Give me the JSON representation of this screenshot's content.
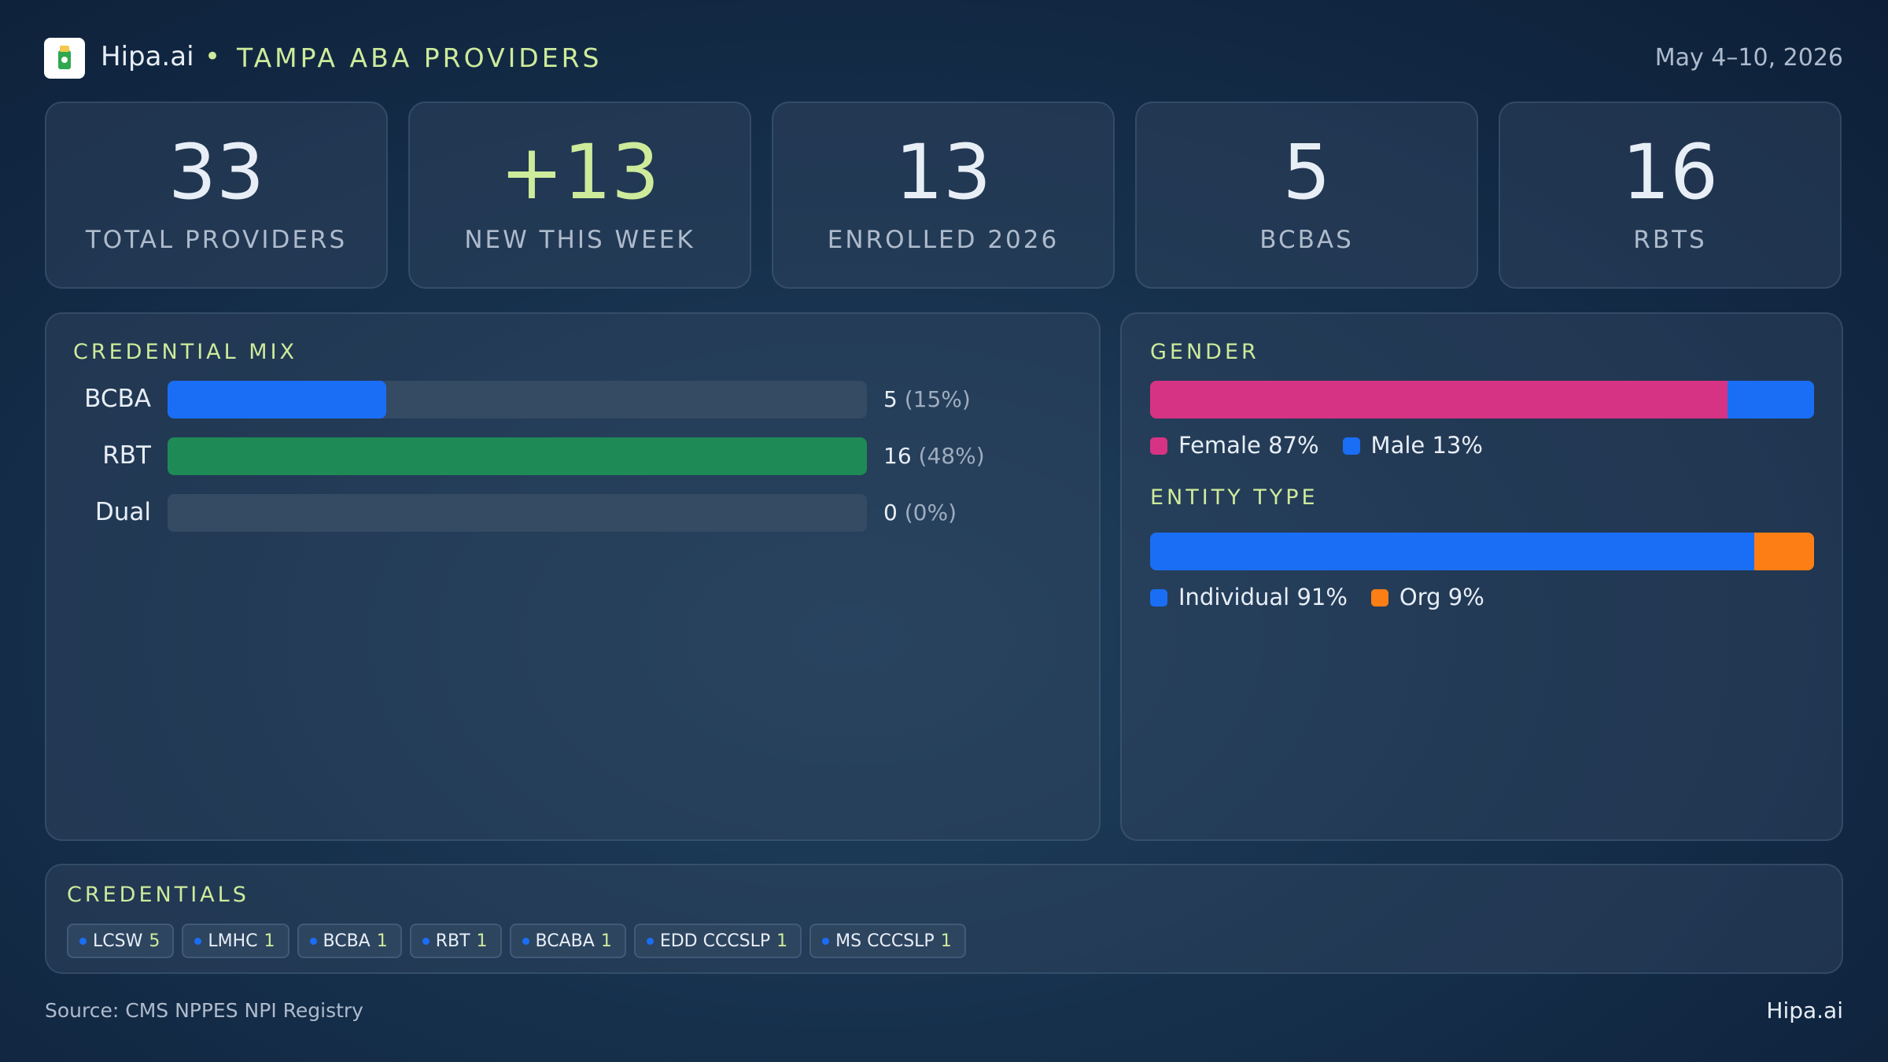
{
  "header": {
    "brand": "Hipa.ai",
    "separator": "•",
    "title": "TAMPA ABA PROVIDERS",
    "date": "May 4–10, 2026"
  },
  "kpis": [
    {
      "value": 33,
      "label": "TOTAL PROVIDERS"
    },
    {
      "value": "+13",
      "label": "NEW THIS WEEK",
      "color": "#cdeb9b"
    },
    {
      "value": 13,
      "label": "ENROLLED 2026"
    },
    {
      "value": 5,
      "label": "BCBAS"
    },
    {
      "value": 16,
      "label": "RBTS"
    }
  ],
  "credential_mix": {
    "title": "CREDENTIAL MIX",
    "categories": [
      "BCBA",
      "RBT",
      "Dual"
    ],
    "values": [
      5,
      16,
      0
    ],
    "percent_labels": [
      "(15%)",
      "(48%)",
      "(0%)"
    ],
    "colors": [
      "#1a6ef5",
      "#1e8a55",
      "#1a6ef5"
    ]
  },
  "gender": {
    "title": "GENDER",
    "series": [
      {
        "name": "Female",
        "value": 87,
        "label": "87%",
        "color": "#d63384"
      },
      {
        "name": "Male",
        "value": 13,
        "label": "13%",
        "color": "#1a6ef5"
      }
    ]
  },
  "entity_type": {
    "title": "ENTITY TYPE",
    "series": [
      {
        "name": "Individual",
        "value": 91,
        "label": "91%",
        "color": "#1a6ef5"
      },
      {
        "name": "Org",
        "value": 9,
        "label": "9%",
        "color": "#fd7e14"
      }
    ]
  },
  "credentials": {
    "title": "CREDENTIALS",
    "chips": [
      {
        "name": "LCSW",
        "count": 5
      },
      {
        "name": "LMHC",
        "count": 1
      },
      {
        "name": "BCBA",
        "count": 1
      },
      {
        "name": "RBT",
        "count": 1
      },
      {
        "name": "BCABA",
        "count": 1
      },
      {
        "name": "EDD CCCSLP",
        "count": 1
      },
      {
        "name": "MS CCCSLP",
        "count": 1
      }
    ]
  },
  "footer": {
    "source": "Source: CMS NPPES NPI Registry",
    "brand": "Hipa.ai"
  }
}
